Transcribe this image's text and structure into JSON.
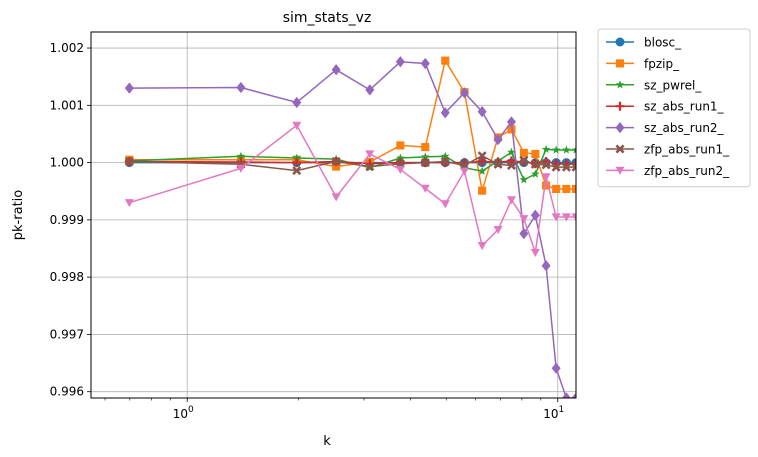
{
  "chart_data": {
    "type": "line",
    "title": "sim_stats_vz",
    "xlabel": "k",
    "ylabel": "pk-ratio",
    "xscale": "log",
    "xlim": [
      0.55,
      11.2
    ],
    "ylim": [
      0.99589,
      1.00228
    ],
    "grid": true,
    "legend_position": "outside-right-top",
    "x_ticks": [
      {
        "value": 1,
        "base": "10",
        "exp": "0"
      },
      {
        "value": 10,
        "base": "10",
        "exp": "1"
      }
    ],
    "y_ticks": [
      {
        "value": 0.996,
        "label": "0.996"
      },
      {
        "value": 0.997,
        "label": "0.997"
      },
      {
        "value": 0.998,
        "label": "0.998"
      },
      {
        "value": 0.999,
        "label": "0.999"
      },
      {
        "value": 1.0,
        "label": "1.000"
      },
      {
        "value": 1.001,
        "label": "1.001"
      },
      {
        "value": 1.002,
        "label": "1.002"
      }
    ],
    "x": [
      0.698,
      1.396,
      1.975,
      2.523,
      3.11,
      3.76,
      4.39,
      4.97,
      5.6,
      6.25,
      6.9,
      7.5,
      8.1,
      8.7,
      9.3,
      9.9,
      10.55,
      11.2
    ],
    "series": [
      {
        "name": "blosc_",
        "color": "#1f77b4",
        "marker": "circle",
        "values": [
          1.0,
          1.0,
          1.0,
          1.0,
          1.0,
          1.0,
          1.0,
          1.0,
          1.0,
          1.0,
          1.0,
          1.0,
          1.0,
          1.0,
          1.0,
          1.0,
          1.0,
          1.0
        ]
      },
      {
        "name": "fpzip_",
        "color": "#ff7f0e",
        "marker": "square",
        "values": [
          1.00005,
          1.00005,
          1.00005,
          0.99993,
          1.00001,
          1.0003,
          1.00027,
          1.00178,
          1.00123,
          0.99951,
          1.00044,
          1.00058,
          1.00017,
          1.00015,
          0.9996,
          0.99954,
          0.99954,
          0.99954
        ]
      },
      {
        "name": "sz_pwrel_",
        "color": "#2ca02c",
        "marker": "star",
        "values": [
          1.00003,
          1.00011,
          1.00008,
          1.00006,
          0.99991,
          1.00008,
          1.0001,
          1.00011,
          0.99991,
          0.99985,
          1.00003,
          1.00018,
          0.9997,
          0.9998,
          1.00023,
          1.00022,
          1.00022,
          1.00022
        ]
      },
      {
        "name": "sz_abs_run1_",
        "color": "#d62728",
        "marker": "plus",
        "values": [
          1.00002,
          1.00001,
          1.0,
          1.00002,
          0.99998,
          1.0,
          1.0,
          1.0,
          1.0,
          1.00002,
          1.00001,
          1.00003,
          1.00001,
          0.99998,
          1.00002,
          0.99998,
          0.99998,
          0.99998
        ]
      },
      {
        "name": "sz_abs_run2_",
        "color": "#9467bd",
        "marker": "diamond",
        "values": [
          1.0013,
          1.00131,
          1.00105,
          1.00162,
          1.00127,
          1.00176,
          1.00173,
          1.00087,
          1.00122,
          1.00089,
          1.0004,
          1.00071,
          0.99876,
          0.99908,
          0.9982,
          0.99641,
          0.99589,
          0.99589
        ]
      },
      {
        "name": "zfp_abs_run1_",
        "color": "#8c564b",
        "marker": "x",
        "values": [
          1.00002,
          0.99997,
          0.99986,
          1.00002,
          0.99993,
          0.99998,
          1.0,
          1.00002,
          0.99995,
          1.00012,
          0.99997,
          0.99995,
          1.00004,
          0.99997,
          0.99996,
          0.99992,
          0.99992,
          0.99992
        ]
      },
      {
        "name": "zfp_abs_run2_",
        "color": "#e377c2",
        "marker": "triangle-down",
        "values": [
          0.9993,
          0.9999,
          1.00065,
          0.9994,
          1.00015,
          0.99988,
          0.99955,
          0.99928,
          0.99985,
          0.99855,
          0.99883,
          0.99935,
          0.99902,
          0.99843,
          0.99975,
          0.99905,
          0.99905,
          0.99905
        ]
      }
    ]
  }
}
